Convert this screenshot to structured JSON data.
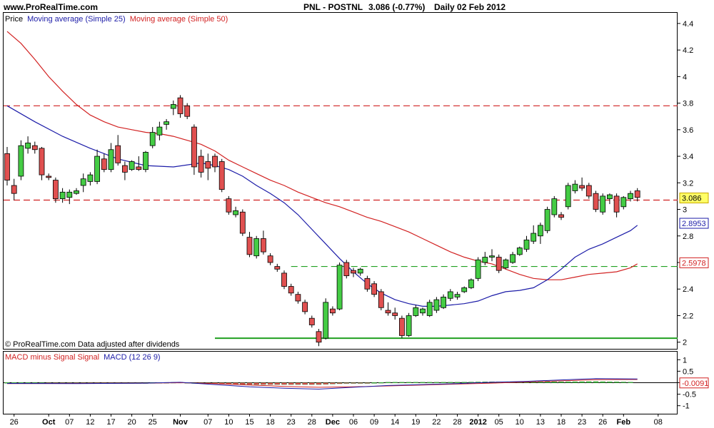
{
  "header": {
    "site": "www.ProRealTime.com",
    "symbol": "PNL - POSTNL",
    "quote": "3.086 (-0.77%)",
    "period": "Daily  02 Feb 2012"
  },
  "price_panel": {
    "legend_price": "Price",
    "legend_ma25": "Moving average (Simple 25)",
    "legend_ma50": "Moving average (Simple 50)",
    "footer_note": "© ProRealTime.com  Data adjusted after dividends"
  },
  "macd_panel": {
    "legend_hist": "MACD minus Signal Signal",
    "legend_macd": "MACD (12 26 9)"
  },
  "colors": {
    "up": "#44cc44",
    "down": "#e05050",
    "ma25": "#1c1ca8",
    "ma50": "#d22222",
    "hline_red": "#d02020",
    "hline_green": "#20a020",
    "frame": "#000000"
  },
  "chart_data": [
    {
      "type": "candlestick",
      "title": "PNL - POSTNL",
      "ylim": [
        1.95,
        4.48
      ],
      "y_ticks": [
        2,
        2.2,
        2.4,
        2.6,
        2.8,
        3,
        3.2,
        3.4,
        3.6,
        3.8,
        4,
        4.2,
        4.4
      ],
      "y_tick_labels": [
        "2",
        "2.2",
        "2.4",
        "2.6",
        "2.8",
        "3",
        "3.2",
        "3.4",
        "3.6",
        "3.8",
        "4",
        "4.2",
        "4.4"
      ],
      "x_labels": [
        {
          "i": 1,
          "t": "26"
        },
        {
          "i": 6,
          "t": "Oct"
        },
        {
          "i": 9,
          "t": "07"
        },
        {
          "i": 12,
          "t": "12"
        },
        {
          "i": 15,
          "t": "17"
        },
        {
          "i": 18,
          "t": "20"
        },
        {
          "i": 21,
          "t": "25"
        },
        {
          "i": 25,
          "t": "Nov"
        },
        {
          "i": 29,
          "t": "07"
        },
        {
          "i": 32,
          "t": "10"
        },
        {
          "i": 35,
          "t": "15"
        },
        {
          "i": 38,
          "t": "18"
        },
        {
          "i": 41,
          "t": "23"
        },
        {
          "i": 44,
          "t": "28"
        },
        {
          "i": 47,
          "t": "Dec"
        },
        {
          "i": 50,
          "t": "06"
        },
        {
          "i": 53,
          "t": "09"
        },
        {
          "i": 56,
          "t": "14"
        },
        {
          "i": 59,
          "t": "19"
        },
        {
          "i": 62,
          "t": "22"
        },
        {
          "i": 65,
          "t": "28"
        },
        {
          "i": 68,
          "t": "2012"
        },
        {
          "i": 71,
          "t": "05"
        },
        {
          "i": 74,
          "t": "10"
        },
        {
          "i": 77,
          "t": "13"
        },
        {
          "i": 80,
          "t": "18"
        },
        {
          "i": 83,
          "t": "23"
        },
        {
          "i": 86,
          "t": "26"
        },
        {
          "i": 89,
          "t": "Feb"
        },
        {
          "i": 94,
          "t": "08"
        }
      ],
      "candles": [
        [
          3.42,
          3.47,
          3.18,
          3.22
        ],
        [
          3.18,
          3.23,
          3.07,
          3.12
        ],
        [
          3.25,
          3.52,
          3.22,
          3.48
        ],
        [
          3.46,
          3.55,
          3.42,
          3.5
        ],
        [
          3.48,
          3.51,
          3.42,
          3.45
        ],
        [
          3.46,
          3.47,
          3.22,
          3.26
        ],
        [
          3.25,
          3.27,
          3.22,
          3.24
        ],
        [
          3.22,
          3.24,
          3.05,
          3.08
        ],
        [
          3.08,
          3.16,
          3.05,
          3.13
        ],
        [
          3.09,
          3.15,
          3.04,
          3.13
        ],
        [
          3.12,
          3.16,
          3.11,
          3.14
        ],
        [
          3.18,
          3.27,
          3.13,
          3.23
        ],
        [
          3.21,
          3.28,
          3.18,
          3.26
        ],
        [
          3.21,
          3.45,
          3.19,
          3.4
        ],
        [
          3.38,
          3.42,
          3.28,
          3.3
        ],
        [
          3.3,
          3.5,
          3.28,
          3.45
        ],
        [
          3.48,
          3.56,
          3.33,
          3.35
        ],
        [
          3.33,
          3.36,
          3.22,
          3.28
        ],
        [
          3.3,
          3.37,
          3.29,
          3.36
        ],
        [
          3.32,
          3.4,
          3.29,
          3.3
        ],
        [
          3.3,
          3.44,
          3.28,
          3.43
        ],
        [
          3.48,
          3.62,
          3.46,
          3.58
        ],
        [
          3.56,
          3.66,
          3.52,
          3.62
        ],
        [
          3.64,
          3.68,
          3.6,
          3.66
        ],
        [
          3.76,
          3.82,
          3.71,
          3.79
        ],
        [
          3.84,
          3.86,
          3.69,
          3.72
        ],
        [
          3.78,
          3.8,
          3.68,
          3.7
        ],
        [
          3.62,
          3.64,
          3.26,
          3.32
        ],
        [
          3.4,
          3.45,
          3.24,
          3.28
        ],
        [
          3.36,
          3.42,
          3.22,
          3.31
        ],
        [
          3.4,
          3.42,
          3.28,
          3.32
        ],
        [
          3.36,
          3.38,
          3.13,
          3.15
        ],
        [
          3.08,
          3.1,
          2.96,
          2.98
        ],
        [
          2.96,
          3.02,
          2.94,
          2.99
        ],
        [
          2.98,
          3.0,
          2.8,
          2.82
        ],
        [
          2.79,
          2.83,
          2.64,
          2.66
        ],
        [
          2.65,
          2.8,
          2.63,
          2.78
        ],
        [
          2.78,
          2.84,
          2.66,
          2.68
        ],
        [
          2.65,
          2.67,
          2.58,
          2.6
        ],
        [
          2.57,
          2.59,
          2.53,
          2.55
        ],
        [
          2.52,
          2.54,
          2.4,
          2.42
        ],
        [
          2.42,
          2.44,
          2.35,
          2.37
        ],
        [
          2.36,
          2.38,
          2.29,
          2.31
        ],
        [
          2.3,
          2.32,
          2.21,
          2.23
        ],
        [
          2.18,
          2.2,
          2.11,
          2.13
        ],
        [
          2.08,
          2.1,
          1.97,
          2.0
        ],
        [
          2.03,
          2.33,
          2.02,
          2.3
        ],
        [
          2.25,
          2.27,
          2.2,
          2.22
        ],
        [
          2.25,
          2.6,
          2.24,
          2.58
        ],
        [
          2.6,
          2.62,
          2.48,
          2.5
        ],
        [
          2.54,
          2.56,
          2.49,
          2.52
        ],
        [
          2.52,
          2.56,
          2.5,
          2.55
        ],
        [
          2.48,
          2.5,
          2.38,
          2.4
        ],
        [
          2.44,
          2.46,
          2.34,
          2.36
        ],
        [
          2.38,
          2.4,
          2.24,
          2.26
        ],
        [
          2.24,
          2.3,
          2.2,
          2.22
        ],
        [
          2.22,
          2.26,
          2.17,
          2.2
        ],
        [
          2.18,
          2.2,
          2.03,
          2.05
        ],
        [
          2.05,
          2.22,
          2.04,
          2.2
        ],
        [
          2.2,
          2.28,
          2.19,
          2.26
        ],
        [
          2.22,
          2.26,
          2.2,
          2.25
        ],
        [
          2.2,
          2.32,
          2.19,
          2.3
        ],
        [
          2.24,
          2.34,
          2.22,
          2.32
        ],
        [
          2.26,
          2.36,
          2.25,
          2.34
        ],
        [
          2.33,
          2.4,
          2.31,
          2.38
        ],
        [
          2.34,
          2.38,
          2.32,
          2.36
        ],
        [
          2.38,
          2.42,
          2.37,
          2.41
        ],
        [
          2.41,
          2.48,
          2.4,
          2.47
        ],
        [
          2.48,
          2.64,
          2.46,
          2.62
        ],
        [
          2.6,
          2.68,
          2.58,
          2.64
        ],
        [
          2.64,
          2.7,
          2.61,
          2.65
        ],
        [
          2.64,
          2.66,
          2.52,
          2.54
        ],
        [
          2.56,
          2.63,
          2.55,
          2.62
        ],
        [
          2.6,
          2.68,
          2.59,
          2.66
        ],
        [
          2.66,
          2.72,
          2.65,
          2.71
        ],
        [
          2.7,
          2.8,
          2.68,
          2.77
        ],
        [
          2.76,
          2.88,
          2.74,
          2.82
        ],
        [
          2.8,
          2.9,
          2.74,
          2.88
        ],
        [
          2.84,
          3.02,
          2.82,
          3.0
        ],
        [
          2.96,
          3.1,
          2.94,
          3.08
        ],
        [
          2.96,
          2.98,
          2.92,
          2.94
        ],
        [
          3.02,
          3.2,
          3.0,
          3.18
        ],
        [
          3.14,
          3.22,
          3.12,
          3.19
        ],
        [
          3.18,
          3.24,
          3.14,
          3.16
        ],
        [
          3.18,
          3.2,
          3.08,
          3.1
        ],
        [
          3.12,
          3.14,
          2.98,
          3.0
        ],
        [
          2.98,
          3.12,
          2.96,
          3.1
        ],
        [
          3.08,
          3.12,
          3.04,
          3.11
        ],
        [
          3.1,
          3.12,
          2.94,
          2.98
        ],
        [
          3.02,
          3.1,
          3.0,
          3.09
        ],
        [
          3.08,
          3.14,
          3.06,
          3.12
        ],
        [
          3.14,
          3.16,
          3.06,
          3.09
        ]
      ],
      "ma25": [
        [
          0,
          3.78
        ],
        [
          4,
          3.66
        ],
        [
          8,
          3.55
        ],
        [
          12,
          3.46
        ],
        [
          16,
          3.38
        ],
        [
          20,
          3.33
        ],
        [
          24,
          3.32
        ],
        [
          28,
          3.35
        ],
        [
          30,
          3.33
        ],
        [
          32,
          3.3
        ],
        [
          34,
          3.25
        ],
        [
          36,
          3.18
        ],
        [
          38,
          3.12
        ],
        [
          40,
          3.05
        ],
        [
          42,
          2.96
        ],
        [
          44,
          2.85
        ],
        [
          46,
          2.74
        ],
        [
          48,
          2.63
        ],
        [
          50,
          2.53
        ],
        [
          52,
          2.44
        ],
        [
          54,
          2.37
        ],
        [
          56,
          2.32
        ],
        [
          58,
          2.29
        ],
        [
          60,
          2.27
        ],
        [
          62,
          2.27
        ],
        [
          64,
          2.28
        ],
        [
          66,
          2.29
        ],
        [
          68,
          2.31
        ],
        [
          70,
          2.35
        ],
        [
          72,
          2.38
        ],
        [
          74,
          2.39
        ],
        [
          76,
          2.41
        ],
        [
          78,
          2.47
        ],
        [
          80,
          2.55
        ],
        [
          82,
          2.64
        ],
        [
          84,
          2.7
        ],
        [
          86,
          2.74
        ],
        [
          88,
          2.79
        ],
        [
          90,
          2.84
        ],
        [
          91,
          2.88
        ]
      ],
      "ma50": [
        [
          0,
          4.34
        ],
        [
          2,
          4.25
        ],
        [
          4,
          4.13
        ],
        [
          6,
          4.0
        ],
        [
          8,
          3.89
        ],
        [
          10,
          3.79
        ],
        [
          12,
          3.71
        ],
        [
          14,
          3.66
        ],
        [
          16,
          3.62
        ],
        [
          18,
          3.6
        ],
        [
          20,
          3.58
        ],
        [
          22,
          3.57
        ],
        [
          24,
          3.55
        ],
        [
          26,
          3.52
        ],
        [
          28,
          3.49
        ],
        [
          30,
          3.44
        ],
        [
          32,
          3.37
        ],
        [
          34,
          3.32
        ],
        [
          36,
          3.27
        ],
        [
          38,
          3.22
        ],
        [
          40,
          3.18
        ],
        [
          42,
          3.13
        ],
        [
          44,
          3.09
        ],
        [
          46,
          3.05
        ],
        [
          48,
          3.02
        ],
        [
          50,
          2.98
        ],
        [
          52,
          2.94
        ],
        [
          54,
          2.91
        ],
        [
          56,
          2.87
        ],
        [
          58,
          2.83
        ],
        [
          60,
          2.78
        ],
        [
          62,
          2.73
        ],
        [
          64,
          2.68
        ],
        [
          66,
          2.64
        ],
        [
          68,
          2.61
        ],
        [
          70,
          2.59
        ],
        [
          72,
          2.55
        ],
        [
          74,
          2.51
        ],
        [
          76,
          2.48
        ],
        [
          78,
          2.47
        ],
        [
          80,
          2.47
        ],
        [
          82,
          2.49
        ],
        [
          84,
          2.51
        ],
        [
          86,
          2.52
        ],
        [
          88,
          2.53
        ],
        [
          90,
          2.56
        ],
        [
          91,
          2.59
        ]
      ],
      "hlines": [
        {
          "value": 3.78,
          "style": "dashed",
          "color": "#d02020"
        },
        {
          "value": 3.07,
          "style": "dashed",
          "color": "#d02020"
        },
        {
          "value": 2.57,
          "style": "dashed",
          "color": "#20a020",
          "from_i": 41
        },
        {
          "value": 2.03,
          "style": "solid",
          "color": "#20a020",
          "from_i": 30
        }
      ],
      "markers": [
        {
          "text": "3.086",
          "value": 3.086,
          "fill": "#ffff66",
          "border": "#c8a800",
          "color": "#000000"
        },
        {
          "text": "2.8953",
          "value": 2.8953,
          "fill": "#ffffff",
          "border": "#1c1ca8",
          "color": "#1c1ca8"
        },
        {
          "text": "2.5978",
          "value": 2.5978,
          "fill": "#ffffff",
          "border": "#d22222",
          "color": "#d22222"
        }
      ]
    },
    {
      "type": "macd",
      "title": "MACD (12 26 9)",
      "ylim": [
        -1.35,
        1.35
      ],
      "y_ticks": [
        1,
        0.5,
        0,
        -0.5,
        -1
      ],
      "y_tick_labels": [
        "1",
        "0.5",
        "0",
        "-0.5",
        "-1"
      ],
      "zero": 0,
      "macd": [
        [
          0,
          -0.03
        ],
        [
          10,
          -0.04
        ],
        [
          20,
          -0.02
        ],
        [
          25,
          0.02
        ],
        [
          30,
          -0.08
        ],
        [
          35,
          -0.18
        ],
        [
          40,
          -0.24
        ],
        [
          45,
          -0.28
        ],
        [
          50,
          -0.2
        ],
        [
          55,
          -0.12
        ],
        [
          60,
          -0.08
        ],
        [
          65,
          -0.04
        ],
        [
          70,
          0.02
        ],
        [
          75,
          0.06
        ],
        [
          80,
          0.12
        ],
        [
          85,
          0.18
        ],
        [
          91,
          0.16
        ]
      ],
      "signal": [
        [
          0,
          -0.04
        ],
        [
          10,
          -0.03
        ],
        [
          20,
          -0.02
        ],
        [
          25,
          0.0
        ],
        [
          30,
          -0.04
        ],
        [
          35,
          -0.1
        ],
        [
          40,
          -0.16
        ],
        [
          45,
          -0.2
        ],
        [
          50,
          -0.18
        ],
        [
          55,
          -0.14
        ],
        [
          60,
          -0.1
        ],
        [
          65,
          -0.06
        ],
        [
          70,
          -0.02
        ],
        [
          75,
          0.03
        ],
        [
          80,
          0.08
        ],
        [
          85,
          0.13
        ],
        [
          91,
          0.14
        ]
      ],
      "markers": [
        {
          "text": "-0.0091",
          "value": -0.0091,
          "fill": "#ffffff",
          "border": "#d22222",
          "color": "#d22222"
        }
      ]
    }
  ]
}
